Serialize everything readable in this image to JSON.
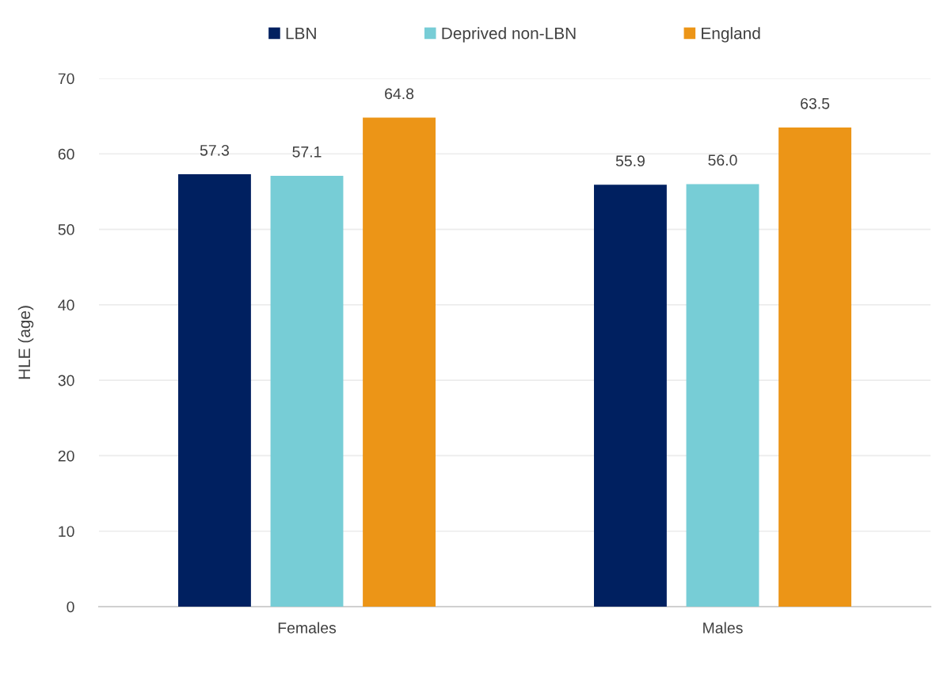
{
  "chart_data": {
    "type": "bar",
    "categories": [
      "Females",
      "Males"
    ],
    "series": [
      {
        "name": "LBN",
        "color": "#002060",
        "values": [
          57.3,
          55.9
        ],
        "value_labels": [
          "57.3",
          "55.9"
        ]
      },
      {
        "name": "Deprived non-LBN",
        "color": "#77cdd6",
        "values": [
          57.1,
          56.0
        ],
        "value_labels": [
          "57.1",
          "56.0"
        ]
      },
      {
        "name": "England",
        "color": "#ec9517",
        "values": [
          64.8,
          63.5
        ],
        "value_labels": [
          "64.8",
          "63.5"
        ]
      }
    ],
    "ylabel": "HLE (age)",
    "ylim": [
      0,
      70
    ],
    "yticks": [
      0,
      10,
      20,
      30,
      40,
      50,
      60,
      70
    ],
    "grid": "y",
    "legend": "top"
  }
}
